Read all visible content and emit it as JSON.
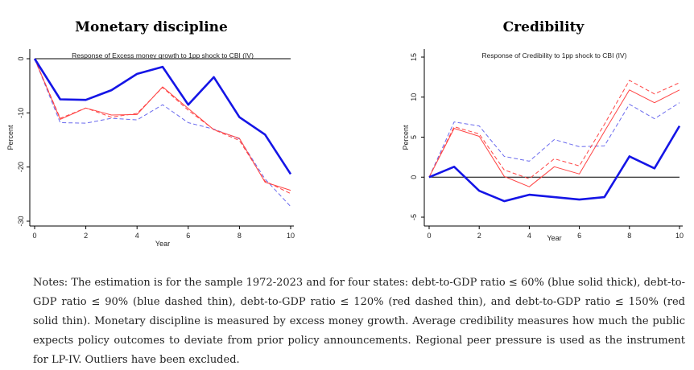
{
  "colors": {
    "blue_thick": "#1515e6",
    "blue_dashed": "#6a6aee",
    "red": "#ff4444",
    "axis": "#000000"
  },
  "chart_data": [
    {
      "type": "line",
      "panel_title": "Monetary discipline",
      "title": "Response of Excess money growth to 1pp shock to CBI (IV)",
      "xlabel": "Year",
      "ylabel": "Percent",
      "xlim": [
        0,
        10
      ],
      "ylim": [
        -30,
        0
      ],
      "xticks": [
        0,
        2,
        4,
        6,
        8,
        10
      ],
      "yticks": [
        0,
        -10,
        -20,
        -30
      ],
      "zero_line": true,
      "grid": false,
      "x": [
        0,
        1,
        2,
        3,
        4,
        5,
        6,
        7,
        8,
        9,
        10
      ],
      "series": [
        {
          "style": "blue-solid-thick",
          "values": [
            0,
            -7.5,
            -7.6,
            -5.8,
            -2.8,
            -1.5,
            -8.5,
            -3.4,
            -10.8,
            -14,
            -21.3
          ]
        },
        {
          "style": "blue-dashed-thin",
          "values": [
            0,
            -11.8,
            -11.9,
            -11,
            -11.3,
            -8.5,
            -11.8,
            -13,
            -14.8,
            -22.2,
            -27.3
          ]
        },
        {
          "style": "red-dashed-thin",
          "values": [
            0,
            -11,
            -9.1,
            -10.8,
            -10.1,
            -5.3,
            -9.5,
            -13.1,
            -15.1,
            -22.6,
            -24.9
          ]
        },
        {
          "style": "red-solid-thin",
          "values": [
            0,
            -11.2,
            -9.1,
            -10.4,
            -10.3,
            -5.2,
            -9.2,
            -13.1,
            -14.7,
            -22.8,
            -24.3
          ]
        }
      ]
    },
    {
      "type": "line",
      "panel_title": "Credibility",
      "title": "Response of Credibility to 1pp shock to CBI (IV)",
      "xlabel": "Year",
      "ylabel": "Percent",
      "xlim": [
        0,
        10
      ],
      "ylim": [
        -5,
        15
      ],
      "xticks": [
        0,
        2,
        4,
        6,
        8,
        10
      ],
      "yticks": [
        -5,
        0,
        5,
        10,
        15
      ],
      "zero_line": true,
      "grid": false,
      "x": [
        0,
        1,
        2,
        3,
        4,
        5,
        6,
        7,
        8,
        9,
        10
      ],
      "series": [
        {
          "style": "blue-solid-thick",
          "values": [
            0,
            1.3,
            -1.7,
            -3.0,
            -2.2,
            -2.5,
            -2.8,
            -2.5,
            2.6,
            1.1,
            6.4
          ]
        },
        {
          "style": "blue-dashed-thin",
          "values": [
            0,
            6.9,
            6.4,
            2.6,
            2.0,
            4.7,
            3.8,
            3.9,
            9.1,
            7.3,
            9.3
          ]
        },
        {
          "style": "red-dashed-thin",
          "values": [
            0,
            6.3,
            5.4,
            0.9,
            -0.2,
            2.3,
            1.4,
            6.6,
            12.1,
            10.4,
            11.8
          ]
        },
        {
          "style": "red-solid-thin",
          "values": [
            0,
            6.1,
            5.1,
            0.1,
            -1.2,
            1.3,
            0.4,
            5.7,
            10.9,
            9.3,
            10.9
          ]
        }
      ]
    }
  ],
  "notes": "Notes: The estimation is for the sample 1972-2023 and for four states: debt-to-GDP ratio ≤ 60% (blue solid thick), debt-to-GDP ratio ≤ 90% (blue dashed thin), debt-to-GDP ratio ≤ 120% (red dashed thin), and debt-to-GDP ratio ≤ 150% (red solid thin). Monetary discipline is measured by excess money growth. Average credibility measures how much the public expects policy outcomes to deviate from prior policy announcements. Regional peer pressure is used as the instrument for LP-IV. Outliers have been excluded."
}
